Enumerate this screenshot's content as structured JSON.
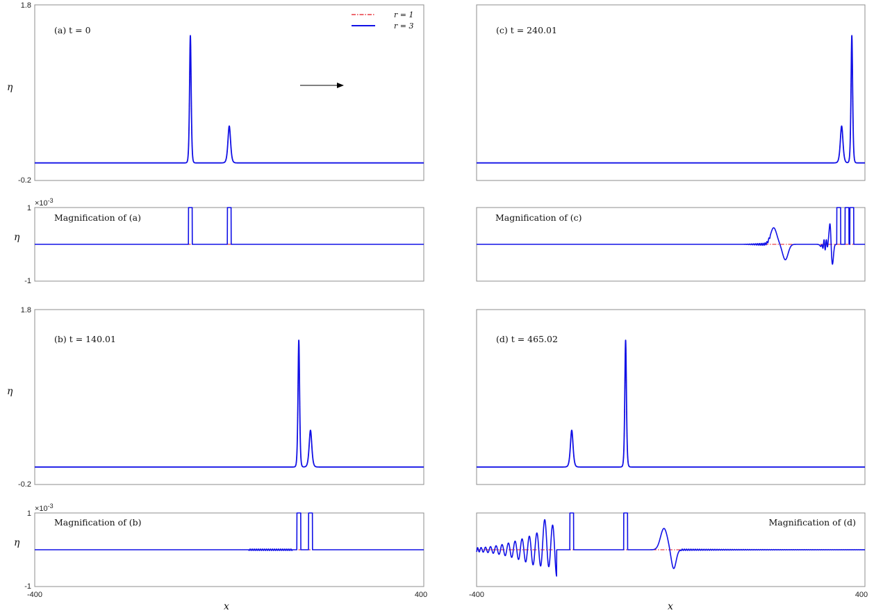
{
  "colors": {
    "r1": "#e3101a",
    "r3": "#1010e6",
    "arrow": "#000000",
    "axis": "#8c8c8c"
  },
  "legend": {
    "r1": "r = 1",
    "r3": "r = 3",
    "placement": "top-right of panel (a)"
  },
  "xlabel": "x",
  "ylabel": "η",
  "exponent_label": "×10",
  "exponent_power": "-3",
  "chart_data": [
    {
      "id": "a",
      "type": "line",
      "title": "(a) t = 0",
      "xlim": [
        -400,
        400
      ],
      "ylim": [
        -0.2,
        1.8
      ],
      "ytick_labels": [
        "1.8",
        "-0.2"
      ],
      "xtick_labels": [],
      "annotation": "arrow pointing right (direction of propagation)",
      "series": [
        {
          "name": "r = 1",
          "solitons": [
            [
              -80,
              1.45,
              2.2
            ],
            [
              0,
              0.42,
              3.6
            ]
          ]
        },
        {
          "name": "r = 3",
          "solitons": [
            [
              -80,
              1.45,
              2.2
            ],
            [
              0,
              0.42,
              3.6
            ]
          ]
        }
      ]
    },
    {
      "id": "a-mag",
      "type": "line",
      "title": "Magnification of (a)",
      "xlim": [
        -400,
        400
      ],
      "ylim": [
        -1,
        1
      ],
      "scale": "×10^-3",
      "ytick_labels": [
        "1",
        "-1"
      ],
      "xtick_labels": [],
      "series": [
        {
          "name": "r = 3",
          "spikes": [
            -80,
            0
          ],
          "tail": []
        }
      ]
    },
    {
      "id": "c",
      "type": "line",
      "title": "(c) t = 240.01",
      "xlim": [
        -400,
        400
      ],
      "ylim": [
        -0.2,
        1.8
      ],
      "ytick_labels": [],
      "xtick_labels": [],
      "series": [
        {
          "name": "r = 1",
          "solitons": [
            [
              373,
              1.45,
              2.2
            ],
            [
              352,
              0.42,
              3.6
            ]
          ]
        },
        {
          "name": "r = 3",
          "solitons": [
            [
              373,
              1.45,
              2.2
            ],
            [
              352,
              0.42,
              3.6
            ]
          ]
        }
      ]
    },
    {
      "id": "c-mag",
      "type": "line",
      "title": "Magnification of (c)",
      "xlim": [
        -400,
        400
      ],
      "ylim": [
        -1,
        1
      ],
      "ytick_labels": [],
      "xtick_labels": [],
      "series": [
        {
          "name": "r = 3",
          "spikes": [
            346,
            363,
            373
          ],
          "tail": [
            [
              210,
              0.4
            ],
            [
              240,
              -0.4
            ],
            [
              312,
              -0.5
            ],
            [
              322,
              -0.75
            ],
            [
              336,
              -0.98
            ]
          ]
        }
      ]
    },
    {
      "id": "b",
      "type": "line",
      "title": "(b) t = 140.01",
      "xlim": [
        -400,
        400
      ],
      "ylim": [
        -0.2,
        1.8
      ],
      "ytick_labels": [
        "1.8",
        "-0.2"
      ],
      "xtick_labels": [],
      "series": [
        {
          "name": "r = 1",
          "solitons": [
            [
              143,
              1.45,
              2.2
            ],
            [
              167,
              0.42,
              3.6
            ]
          ]
        },
        {
          "name": "r = 3",
          "solitons": [
            [
              143,
              1.45,
              2.2
            ],
            [
              167,
              0.42,
              3.6
            ]
          ]
        }
      ]
    },
    {
      "id": "b-mag",
      "type": "line",
      "title": "Magnification of (b)",
      "xlim": [
        -400,
        400
      ],
      "ylim": [
        -1,
        1
      ],
      "scale": "×10^-3",
      "ytick_labels": [
        "1",
        "-1"
      ],
      "xtick_labels": [
        "-400",
        "400"
      ],
      "series": [
        {
          "name": "r = 3",
          "spikes": [
            143,
            167
          ],
          "tail": []
        }
      ]
    },
    {
      "id": "d",
      "type": "line",
      "title": "(d) t = 465.02",
      "xlim": [
        -400,
        400
      ],
      "ylim": [
        -0.2,
        1.8
      ],
      "ytick_labels": [],
      "xtick_labels": [],
      "series": [
        {
          "name": "r = 1",
          "solitons": [
            [
              -204,
              0.42,
              3.6
            ],
            [
              -93,
              1.45,
              2.2
            ]
          ]
        },
        {
          "name": "r = 3",
          "solitons": [
            [
              -204,
              0.42,
              3.6
            ],
            [
              -93,
              1.45,
              2.2
            ]
          ]
        }
      ]
    },
    {
      "id": "d-mag",
      "type": "line",
      "title": "Magnification of (d)",
      "xlim": [
        -400,
        400
      ],
      "ylim": [
        -1,
        1
      ],
      "ytick_labels": [],
      "xtick_labels": [
        "-400",
        "400"
      ],
      "series": [
        {
          "name": "r = 3",
          "spikes": [
            -204,
            -93
          ],
          "tail": [
            [
              -258,
              0.35
            ],
            [
              -14,
              0.55
            ],
            [
              5,
              -0.45
            ]
          ]
        }
      ]
    }
  ]
}
